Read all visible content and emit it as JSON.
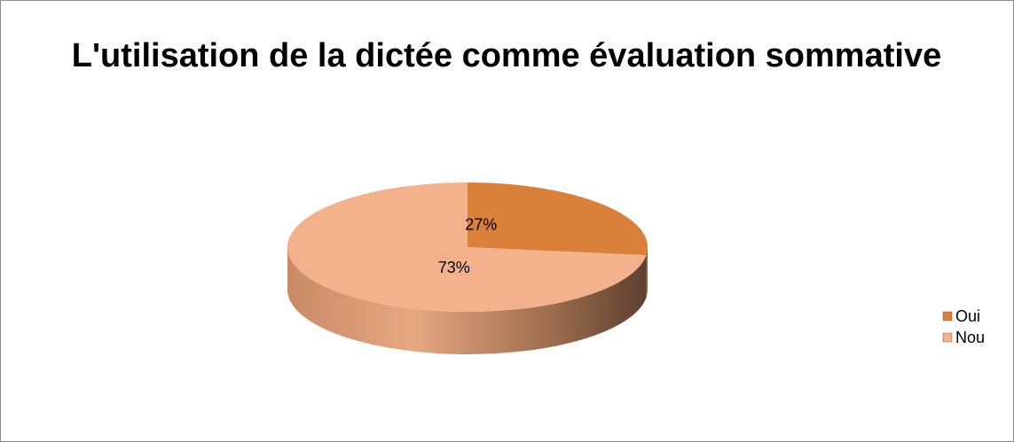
{
  "chart_data": {
    "type": "pie",
    "title": "L'utilisation de la dictée comme évaluation sommative",
    "categories": [
      "Oui",
      "Nou"
    ],
    "values": [
      27,
      73
    ],
    "value_labels": [
      "27%",
      "73%"
    ],
    "colors": [
      "#d9803a",
      "#f4b28c"
    ],
    "legend": "right"
  }
}
